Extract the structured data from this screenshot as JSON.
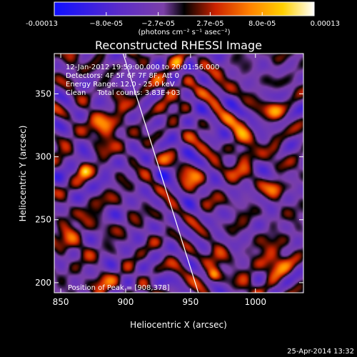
{
  "chart_data": {
    "type": "heatmap",
    "title": "Reconstructed RHESSI Image",
    "xlabel": "Heliocentric X (arcsec)",
    "ylabel": "Heliocentric Y (arcsec)",
    "xlim": [
      845,
      1037
    ],
    "ylim": [
      192,
      382
    ],
    "xticks": [
      850,
      900,
      950,
      1000
    ],
    "yticks": [
      200,
      250,
      300,
      350
    ],
    "colorbar": {
      "ticks": [
        "-0.00013",
        "−8.0e-05",
        "−2.7e-05",
        "2.7e-05",
        "8.0e-05",
        "0.00013"
      ],
      "unit_line": "(photons cm⁻² s⁻¹ asec⁻²)",
      "range": [
        -0.00013,
        0.00013
      ],
      "colors": [
        "#1010ff",
        "#5b2cc9",
        "#7b3fa8",
        "#000000",
        "#cc2200",
        "#ff8000",
        "#ffd000",
        "#ffffff"
      ]
    },
    "annotations": [
      "12-Jan-2012 19:59:00.000 to 20:01:56.000",
      "Detectors: 4F 5F 6F 7F 8F, Att 0",
      "Energy Range: 12.0 - 25.0 keV",
      "Clean     Total counts: 3.83E+03"
    ],
    "peak_label": "Position of Peak = [908,378]",
    "peak": [
      908,
      378
    ],
    "limb_line": [
      [
        898,
        382
      ],
      [
        956,
        192
      ]
    ],
    "grid": false
  },
  "footer": {
    "timestamp": "25-Apr-2014 13:32"
  }
}
